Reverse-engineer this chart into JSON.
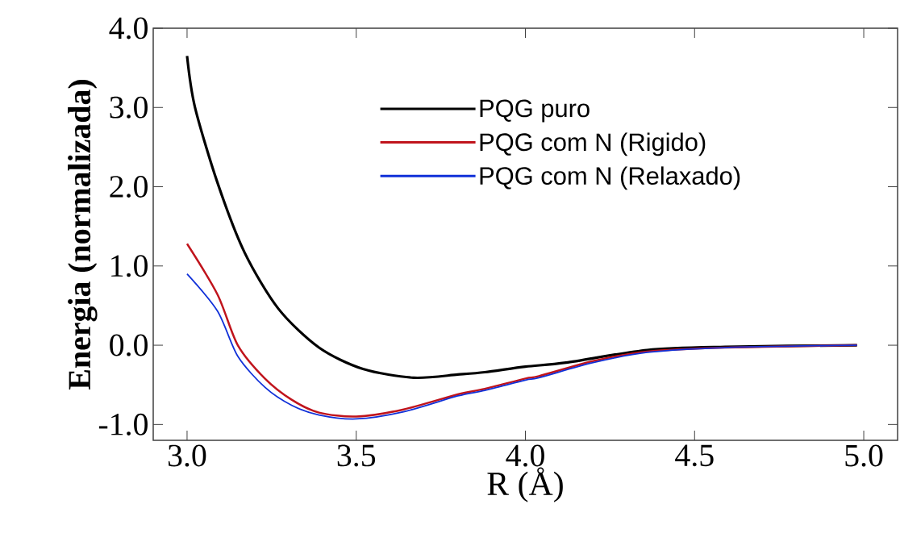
{
  "chart_data": {
    "type": "line",
    "xlabel": "R (Å)",
    "ylabel": "Energia (normalizada)",
    "xlim": [
      2.9,
      5.1
    ],
    "ylim": [
      -1.2,
      4.0
    ],
    "xticks": [
      {
        "value": 3.0,
        "label": "3.0"
      },
      {
        "value": 3.5,
        "label": "3.5"
      },
      {
        "value": 4.0,
        "label": "4.0"
      },
      {
        "value": 4.5,
        "label": "4.5"
      },
      {
        "value": 5.0,
        "label": "5.0"
      }
    ],
    "yticks": [
      {
        "value": -1.0,
        "label": "-1.0"
      },
      {
        "value": 0.0,
        "label": "0.0"
      },
      {
        "value": 1.0,
        "label": "1.0"
      },
      {
        "value": 2.0,
        "label": "2.0"
      },
      {
        "value": 3.0,
        "label": "3.0"
      },
      {
        "value": 4.0,
        "label": "4.0"
      }
    ],
    "grid": false,
    "legend": "top right",
    "marker": "none",
    "line_style": "solid",
    "series": [
      {
        "name": "PQG puro",
        "color": "#000000",
        "x": [
          3.0,
          3.023,
          3.09,
          3.17,
          3.27,
          3.39,
          3.52,
          3.67,
          3.8,
          3.88,
          4.0,
          4.12,
          4.36,
          4.59,
          4.98
        ],
        "values": [
          3.65,
          3.01,
          2.05,
          1.17,
          0.46,
          -0.03,
          -0.3,
          -0.41,
          -0.37,
          -0.34,
          -0.27,
          -0.22,
          -0.06,
          -0.02,
          0.0
        ]
      },
      {
        "name": "PQG com N (Rigido)",
        "color": "#c0141c",
        "x": [
          3.0,
          3.09,
          3.15,
          3.23,
          3.31,
          3.39,
          3.5,
          3.64,
          3.8,
          3.88,
          4.0,
          4.04,
          4.2,
          4.36,
          4.59,
          4.98
        ],
        "values": [
          1.28,
          0.64,
          0.0,
          -0.42,
          -0.69,
          -0.85,
          -0.9,
          -0.81,
          -0.62,
          -0.55,
          -0.42,
          -0.39,
          -0.2,
          -0.08,
          -0.03,
          0.0
        ]
      },
      {
        "name": "PQG com N (Relaxado)",
        "color": "#1030d8",
        "x": [
          3.0,
          3.09,
          3.15,
          3.23,
          3.31,
          3.39,
          3.5,
          3.64,
          3.8,
          3.88,
          4.0,
          4.04,
          4.2,
          4.36,
          4.59,
          4.98
        ],
        "values": [
          0.9,
          0.43,
          -0.14,
          -0.53,
          -0.76,
          -0.88,
          -0.93,
          -0.84,
          -0.64,
          -0.57,
          -0.44,
          -0.41,
          -0.22,
          -0.09,
          -0.03,
          0.0
        ]
      }
    ]
  }
}
